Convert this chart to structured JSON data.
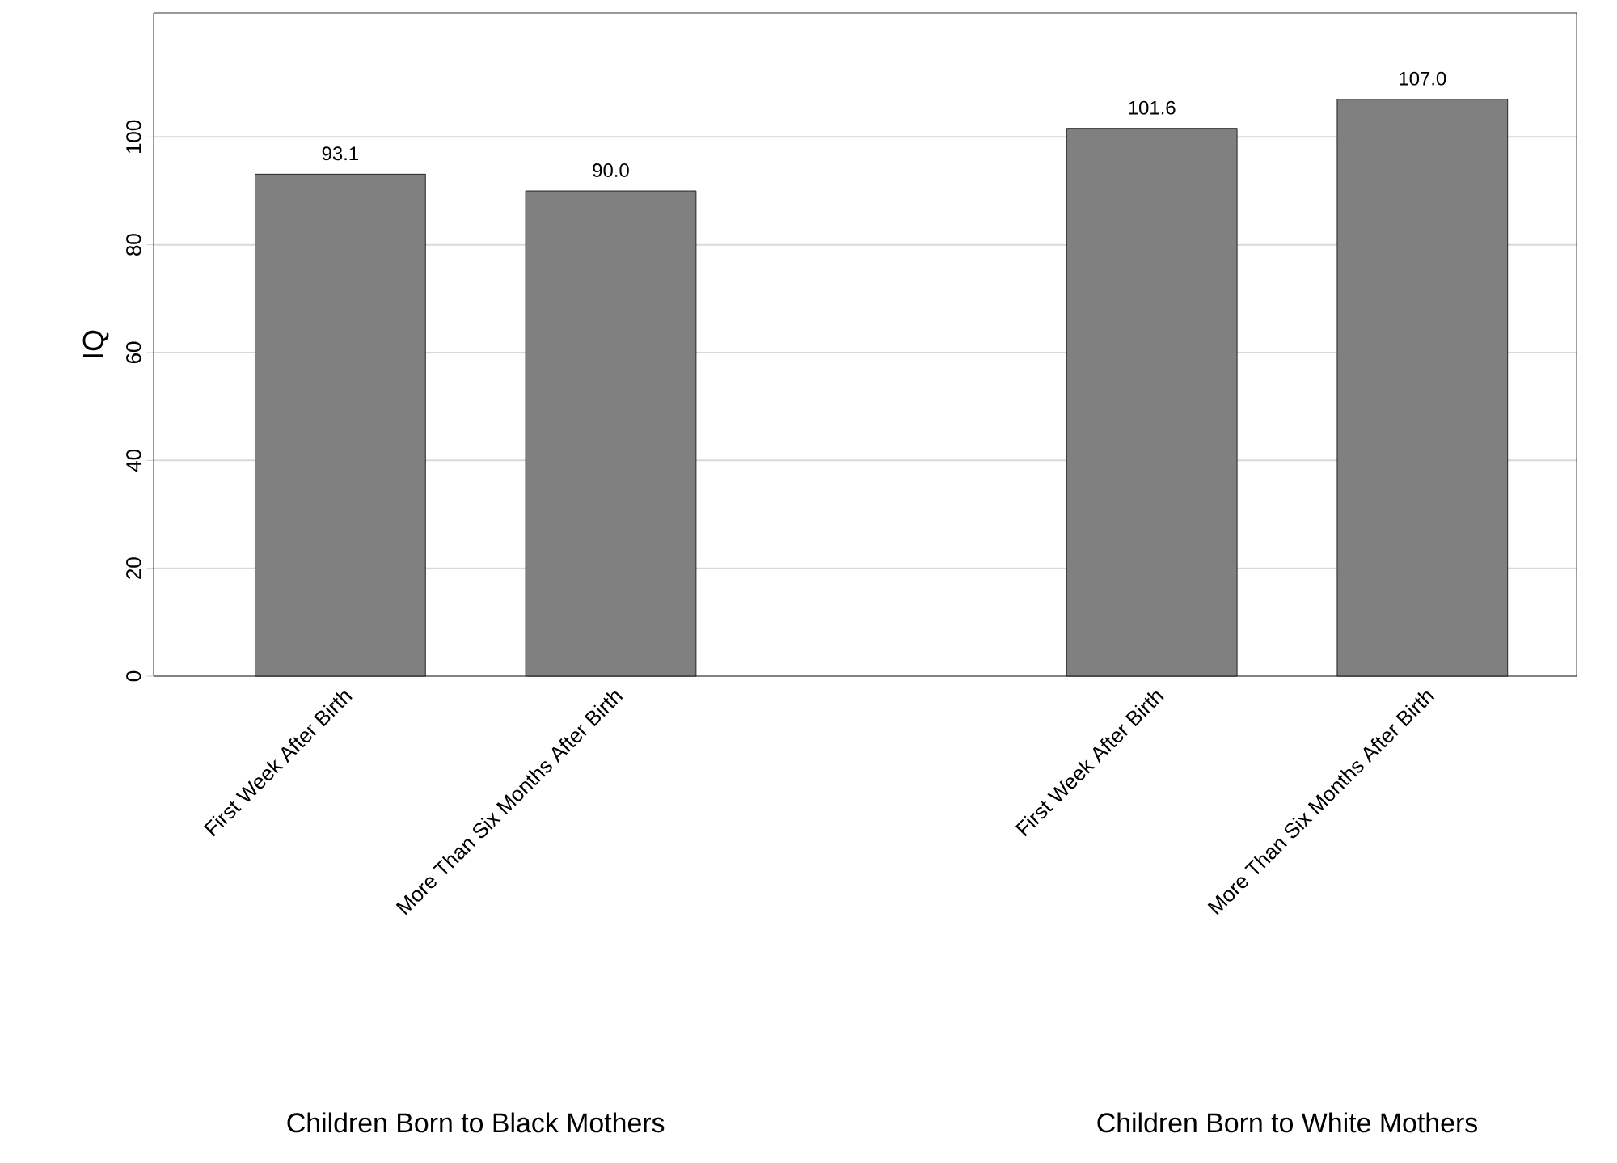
{
  "chart_data": {
    "type": "bar",
    "ylabel": "IQ",
    "categories": [
      "First Week After Birth",
      "More Than Six Months After Birth",
      null,
      "First Week After Birth",
      "More Than Six Months After Birth"
    ],
    "values": [
      93.1,
      90.0,
      null,
      101.6,
      107.0
    ],
    "color": "#808080",
    "ylim": [
      0,
      123
    ],
    "yticks": [
      0,
      20,
      40,
      60,
      80,
      100
    ],
    "grid": "y",
    "value_labels": [
      "93.1",
      "90.0",
      null,
      "101.6",
      "107.0"
    ],
    "annotations": [
      "Children Born to Black Mothers",
      "Children Born to White Mothers"
    ]
  }
}
